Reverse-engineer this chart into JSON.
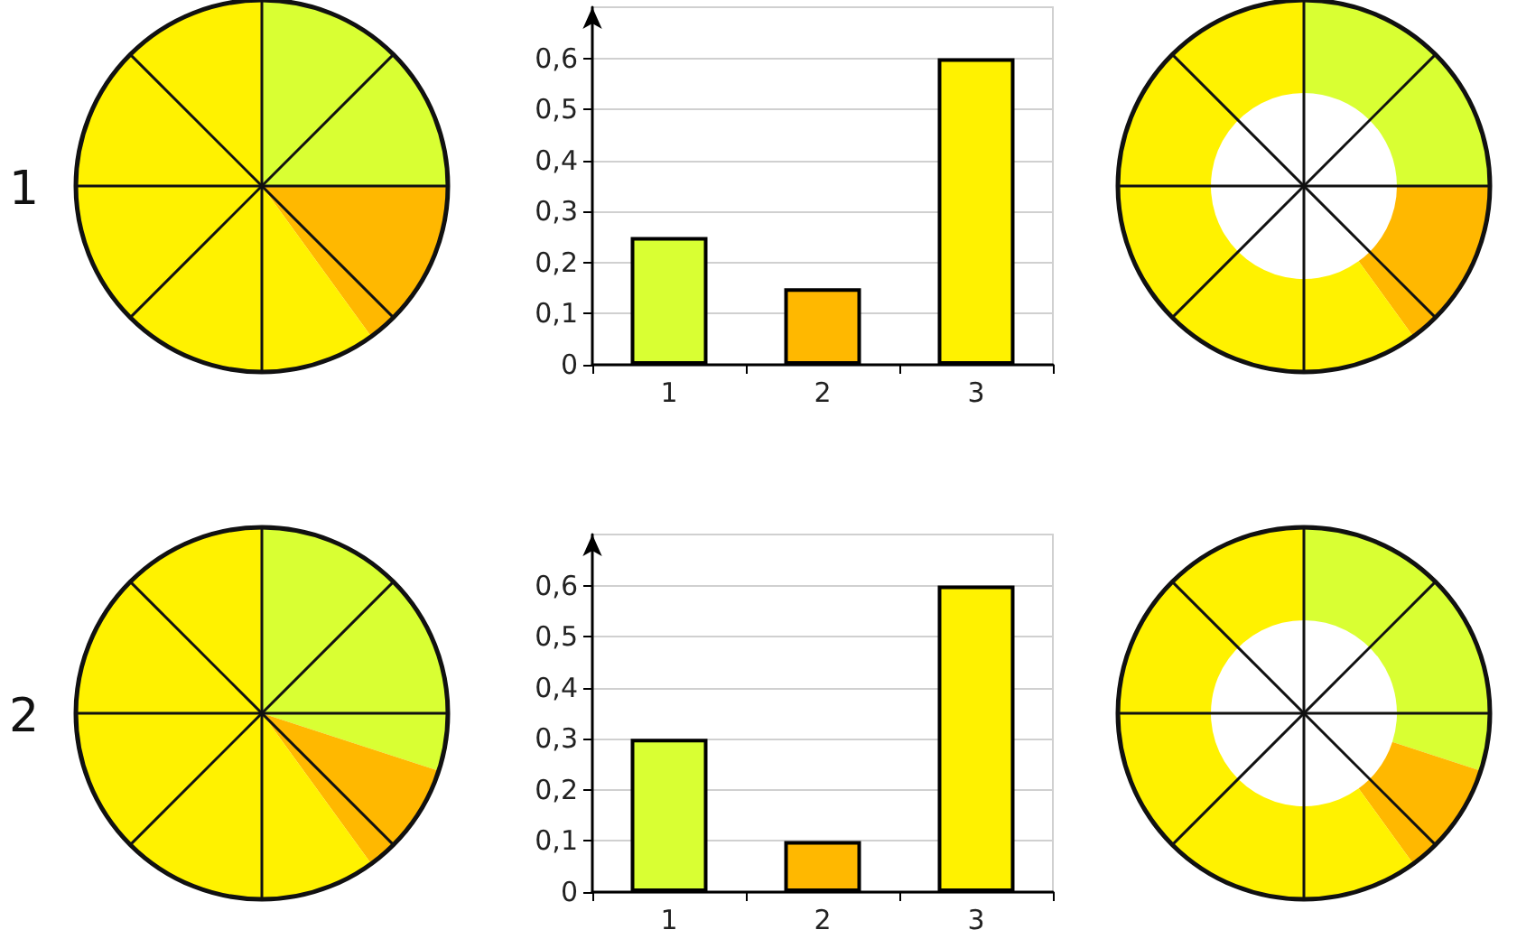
{
  "chart_data": [
    {
      "type": "pie",
      "title": "1",
      "categories": [
        null,
        null,
        null
      ],
      "values": [
        25,
        15,
        60
      ],
      "colors": [
        "#d9ff33",
        "#ffb800",
        "#fff200"
      ]
    },
    {
      "type": "bar",
      "categories": [
        "1",
        "2",
        "3"
      ],
      "values": [
        0.25,
        0.15,
        0.6
      ],
      "colors": [
        "#d9ff33",
        "#ffb800",
        "#fff200"
      ],
      "ylim": [
        0,
        0.7
      ],
      "yticks": [
        0,
        {
          "value": 0.1,
          "label": "0,1"
        },
        {
          "value": 0.2,
          "label": "0,2"
        },
        {
          "value": 0.3,
          "label": "0,3"
        },
        {
          "value": 0.4,
          "label": "0,4"
        },
        {
          "value": 0.5,
          "label": "0,5"
        },
        {
          "value": 0.6,
          "label": "0,6"
        }
      ],
      "grid": "y"
    },
    {
      "type": "donut",
      "categories": [
        null,
        null,
        null
      ],
      "values": [
        25,
        15,
        60
      ],
      "colors": [
        "#d9ff33",
        "#ffb800",
        "#fff200"
      ]
    },
    {
      "type": "pie",
      "title": "2",
      "categories": [
        null,
        null,
        null
      ],
      "values": [
        30,
        10,
        60
      ],
      "colors": [
        "#d9ff33",
        "#ffb800",
        "#fff200"
      ]
    },
    {
      "type": "bar",
      "categories": [
        "1",
        "2",
        "3"
      ],
      "values": [
        0.3,
        0.1,
        0.6
      ],
      "colors": [
        "#d9ff33",
        "#ffb800",
        "#fff200"
      ],
      "ylim": [
        0,
        0.7
      ],
      "yticks": [
        0,
        {
          "value": 0.1,
          "label": "0,1"
        },
        {
          "value": 0.2,
          "label": "0,2"
        },
        {
          "value": 0.3,
          "label": "0,3"
        },
        {
          "value": 0.4,
          "label": "0,4"
        },
        {
          "value": 0.5,
          "label": "0,5"
        },
        {
          "value": 0.6,
          "label": "0,6"
        }
      ],
      "grid": "y"
    },
    {
      "type": "donut",
      "categories": [
        null,
        null,
        null
      ],
      "values": [
        30,
        10,
        60
      ],
      "colors": [
        "#d9ff33",
        "#ffb800",
        "#fff200"
      ]
    }
  ]
}
